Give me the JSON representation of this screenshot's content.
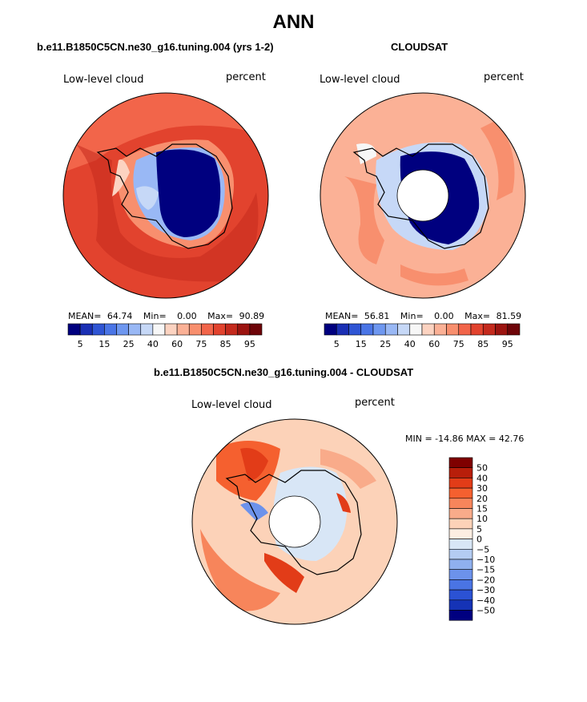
{
  "title": "ANN",
  "panels": [
    {
      "id": "model",
      "subtitle": "b.e11.B1850C5CN.ne30_g16.tuning.004 (yrs 1-2)",
      "variable": "Low-level cloud",
      "units": "percent",
      "mean_label": "MEAN=",
      "mean": "64.74",
      "min_label": "Min=",
      "min": "0.00",
      "max_label": "Max=",
      "max": "90.89"
    },
    {
      "id": "obs",
      "subtitle": "CLOUDSAT",
      "variable": "Low-level cloud",
      "units": "percent",
      "mean_label": "MEAN=",
      "mean": "56.81",
      "min_label": "Min=",
      "min": "0.00",
      "max_label": "Max=",
      "max": "81.59"
    },
    {
      "id": "diff",
      "subtitle": "b.e11.B1850C5CN.ne30_g16.tuning.004 - CLOUDSAT",
      "variable": "Low-level cloud",
      "units": "percent",
      "minmax": "MIN = -14.86 MAX =  42.76"
    }
  ],
  "seq_colorbar": {
    "colors": [
      "#00007f",
      "#1a2fb4",
      "#2f55d4",
      "#4a75e6",
      "#6e97f0",
      "#99b8f5",
      "#c6d8f7",
      "#f7f7f7",
      "#fcd3c1",
      "#fbb196",
      "#f88f6e",
      "#f2654a",
      "#e2432e",
      "#c42a1d",
      "#9c1410",
      "#6e0509"
    ],
    "labels": [
      "5",
      "15",
      "25",
      "40",
      "60",
      "75",
      "85",
      "95"
    ]
  },
  "diff_colorbar": {
    "colors": [
      "#7f0000",
      "#b81e0a",
      "#e23c18",
      "#f5602f",
      "#f7855b",
      "#f9ab8a",
      "#fcd2b8",
      "#fdeee2",
      "#d8e6f6",
      "#b4ccf2",
      "#8fb0ee",
      "#6c92eb",
      "#4a74e4",
      "#2b52d4",
      "#1533b6",
      "#000080"
    ],
    "labels": [
      "50",
      "40",
      "30",
      "20",
      "15",
      "10",
      "5",
      "0",
      "−5",
      "−10",
      "−15",
      "−20",
      "−30",
      "−40",
      "−50"
    ]
  }
}
